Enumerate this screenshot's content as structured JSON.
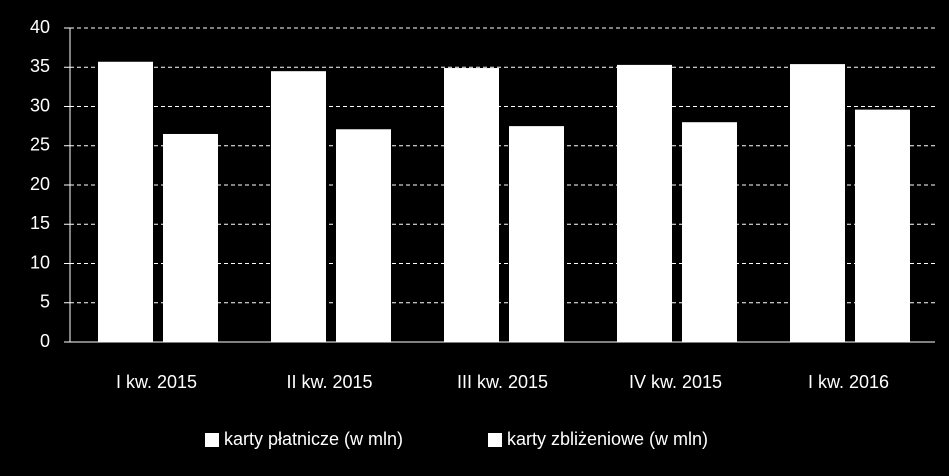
{
  "chart_data": {
    "type": "bar",
    "categories": [
      "I kw. 2015",
      "II kw. 2015",
      "III kw. 2015",
      "IV kw. 2015",
      "I kw. 2016"
    ],
    "series": [
      {
        "name": "karty płatnicze (w mln)",
        "color": "#ffffff",
        "values": [
          35.7,
          34.5,
          34.9,
          35.3,
          35.4
        ]
      },
      {
        "name": "karty zbliżeniowe (w mln)",
        "color": "#ffffff",
        "values": [
          26.5,
          27.1,
          27.5,
          28.0,
          29.6
        ]
      }
    ],
    "ylim": [
      0,
      40
    ],
    "yticks": [
      0,
      5,
      10,
      15,
      20,
      25,
      30,
      35,
      40
    ],
    "grid": true,
    "legend": "bottom"
  }
}
